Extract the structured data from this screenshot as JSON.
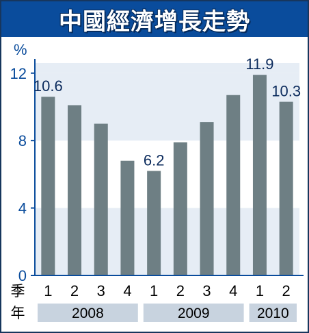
{
  "header": {
    "title": "中國經濟增長走勢",
    "unit": "%"
  },
  "row_headers": {
    "quarter": "季",
    "year": "年"
  },
  "colors": {
    "bar": "#6e7f84",
    "band": "#e6edf5",
    "axis": "#0a4c9c",
    "title_bg": "#0a4c9c",
    "year_bg": "#c8d3df"
  },
  "chart_data": {
    "type": "bar",
    "title": "中國經濟增長走勢",
    "ylabel": "%",
    "xlabel": "",
    "ylim": [
      0,
      12.6
    ],
    "yticks": [
      0,
      4,
      8,
      12
    ],
    "grid": "horizontal bands",
    "categories": [
      "1",
      "2",
      "3",
      "4",
      "1",
      "2",
      "3",
      "4",
      "1",
      "2"
    ],
    "years": [
      {
        "label": "2008",
        "quarters": 4
      },
      {
        "label": "2009",
        "quarters": 4
      },
      {
        "label": "2010",
        "quarters": 2
      }
    ],
    "values": [
      10.6,
      10.1,
      9.0,
      6.8,
      6.2,
      7.9,
      9.1,
      10.7,
      11.9,
      10.3
    ],
    "data_labels": [
      {
        "index": 0,
        "text": "10.6"
      },
      {
        "index": 4,
        "text": "6.2"
      },
      {
        "index": 8,
        "text": "11.9"
      },
      {
        "index": 9,
        "text": "10.3"
      }
    ]
  }
}
